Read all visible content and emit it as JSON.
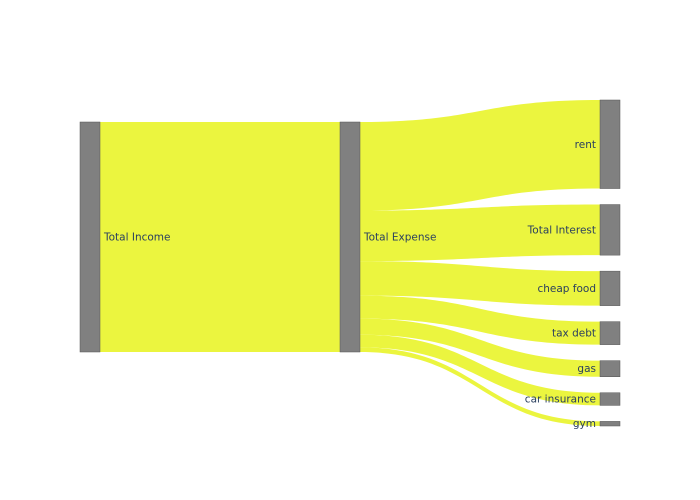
{
  "colors": {
    "link": "#ebf53f",
    "node": "#808080",
    "node_border": "#555555",
    "label": "#2a3f5f"
  },
  "chart_data": {
    "type": "sankey",
    "nodes": [
      {
        "id": "income",
        "label": "Total Income"
      },
      {
        "id": "expense",
        "label": "Total Expense"
      },
      {
        "id": "rent",
        "label": "rent"
      },
      {
        "id": "interest",
        "label": "Total Interest"
      },
      {
        "id": "food",
        "label": "cheap food"
      },
      {
        "id": "tax",
        "label": "tax debt"
      },
      {
        "id": "gas",
        "label": "gas"
      },
      {
        "id": "insurance",
        "label": "car insurance"
      },
      {
        "id": "gym",
        "label": "gym"
      }
    ],
    "links": [
      {
        "source": "income",
        "target": "expense",
        "value": 100
      },
      {
        "source": "expense",
        "target": "rent",
        "value": 38.5
      },
      {
        "source": "expense",
        "target": "interest",
        "value": 22
      },
      {
        "source": "expense",
        "target": "food",
        "value": 15
      },
      {
        "source": "expense",
        "target": "tax",
        "value": 10
      },
      {
        "source": "expense",
        "target": "gas",
        "value": 7
      },
      {
        "source": "expense",
        "target": "insurance",
        "value": 5.5
      },
      {
        "source": "expense",
        "target": "gym",
        "value": 2
      }
    ]
  }
}
